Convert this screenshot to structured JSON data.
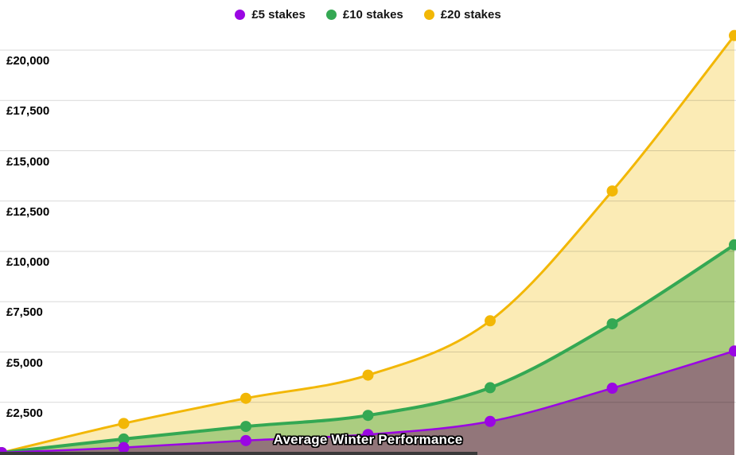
{
  "legend": {
    "items": [
      {
        "label": "£5 stakes",
        "color": "#9A06E3"
      },
      {
        "label": "£10 stakes",
        "color": "#34A853"
      },
      {
        "label": "£20 stakes",
        "color": "#F2B705"
      }
    ]
  },
  "overlay": {
    "caption": "Average Winter Performance"
  },
  "colors": {
    "background": "#FFFFFF",
    "gridline": "rgba(0,0,0,0.15)",
    "axis_label": "#000000",
    "bottom_strip": "#3A3A3A"
  },
  "chart_data": {
    "type": "area",
    "title": "",
    "subtitle": "",
    "legend_position": "top-center",
    "grid": "horizontal",
    "x_labels_visible": false,
    "categories": [
      1,
      2,
      3,
      4,
      5,
      6,
      7
    ],
    "y_axis": {
      "range": [
        0,
        22500
      ],
      "tick_interval": 2500,
      "ticks": [
        {
          "value": 20000,
          "label": "£20,000"
        },
        {
          "value": 17500,
          "label": "£17,500"
        },
        {
          "value": 15000,
          "label": "£15,000"
        },
        {
          "value": 12500,
          "label": "£12,500"
        },
        {
          "value": 10000,
          "label": "£10,000"
        },
        {
          "value": 7500,
          "label": "£7,500"
        },
        {
          "value": 5000,
          "label": "£5,000"
        },
        {
          "value": 2500,
          "label": "£2,500"
        }
      ]
    },
    "series": [
      {
        "name": "£20 stakes",
        "line_color": "#F2B705",
        "area_color": "#FBEBB5",
        "line_width": 3,
        "point_radius": 7,
        "values": [
          0,
          1450,
          2700,
          3850,
          6550,
          13000,
          20725
        ]
      },
      {
        "name": "£10 stakes",
        "line_color": "#34A853",
        "area_color": "#ABCD80",
        "line_width": 4,
        "point_radius": 7,
        "values": [
          0,
          675,
          1300,
          1850,
          3225,
          6400,
          10325
        ]
      },
      {
        "name": "£5 stakes",
        "line_color": "#9A06E3",
        "area_color": "#92767A",
        "line_width": 2.5,
        "point_radius": 7,
        "values": [
          0,
          250,
          600,
          900,
          1550,
          3200,
          5050
        ]
      }
    ]
  }
}
